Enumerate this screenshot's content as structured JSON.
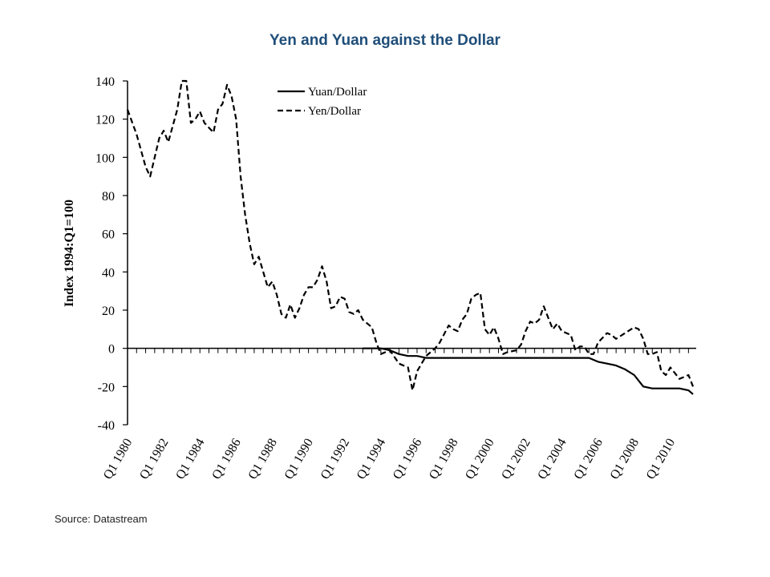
{
  "title": "Yen and Yuan against the Dollar",
  "source": "Source: Datastream",
  "colors": {
    "title": "#1f4e79",
    "lines": "#000000"
  },
  "chart_data": {
    "type": "line",
    "title": "Yen and Yuan against the Dollar",
    "xlabel": "",
    "ylabel": "Index 1994:Q1=100",
    "ylim": [
      -40,
      140
    ],
    "yticks": [
      -40,
      -20,
      0,
      20,
      40,
      60,
      80,
      100,
      120,
      140
    ],
    "x_tick_labels": [
      "Q1 1980",
      "Q1 1982",
      "Q1 1984",
      "Q1 1986",
      "Q1 1988",
      "Q1 1990",
      "Q1 1992",
      "Q1 1994",
      "Q1 1996",
      "Q1 1998",
      "Q1 2000",
      "Q1 2002",
      "Q1 2004",
      "Q1 2006",
      "Q1 2008",
      "Q1 2010"
    ],
    "xlim": [
      1980.0,
      2011.25
    ],
    "grid": false,
    "legend": "top-center",
    "series": [
      {
        "name": "Yuan/Dollar",
        "style": "solid",
        "points": [
          [
            1993.0,
            0
          ],
          [
            1994.0,
            0
          ],
          [
            1994.5,
            -1
          ],
          [
            1995.0,
            -3
          ],
          [
            1995.5,
            -4
          ],
          [
            1996.0,
            -4
          ],
          [
            1996.5,
            -5
          ],
          [
            2005.5,
            -5
          ],
          [
            2006.0,
            -7
          ],
          [
            2006.5,
            -8
          ],
          [
            2007.0,
            -9
          ],
          [
            2007.5,
            -11
          ],
          [
            2008.0,
            -14
          ],
          [
            2008.5,
            -20
          ],
          [
            2009.0,
            -21
          ],
          [
            2010.5,
            -21
          ],
          [
            2011.0,
            -22
          ],
          [
            2011.25,
            -24
          ]
        ]
      },
      {
        "name": "Yen/Dollar",
        "style": "dashed",
        "points": [
          [
            1980.0,
            125
          ],
          [
            1980.5,
            112
          ],
          [
            1981.0,
            95
          ],
          [
            1981.25,
            90
          ],
          [
            1981.75,
            110
          ],
          [
            1982.0,
            114
          ],
          [
            1982.25,
            108
          ],
          [
            1982.75,
            125
          ],
          [
            1983.0,
            140
          ],
          [
            1983.25,
            140
          ],
          [
            1983.5,
            118
          ],
          [
            1983.75,
            120
          ],
          [
            1984.0,
            124
          ],
          [
            1984.25,
            118
          ],
          [
            1984.75,
            113
          ],
          [
            1985.0,
            125
          ],
          [
            1985.25,
            128
          ],
          [
            1985.5,
            138
          ],
          [
            1985.75,
            132
          ],
          [
            1986.0,
            120
          ],
          [
            1986.25,
            90
          ],
          [
            1986.5,
            70
          ],
          [
            1986.75,
            55
          ],
          [
            1987.0,
            44
          ],
          [
            1987.25,
            48
          ],
          [
            1987.5,
            40
          ],
          [
            1987.75,
            32
          ],
          [
            1988.0,
            35
          ],
          [
            1988.25,
            28
          ],
          [
            1988.5,
            18
          ],
          [
            1988.75,
            16
          ],
          [
            1989.0,
            23
          ],
          [
            1989.25,
            16
          ],
          [
            1989.5,
            21
          ],
          [
            1989.75,
            28
          ],
          [
            1990.0,
            32
          ],
          [
            1990.25,
            32
          ],
          [
            1990.5,
            36
          ],
          [
            1990.75,
            43
          ],
          [
            1991.0,
            35
          ],
          [
            1991.25,
            21
          ],
          [
            1991.5,
            22
          ],
          [
            1991.75,
            27
          ],
          [
            1992.0,
            26
          ],
          [
            1992.25,
            19
          ],
          [
            1992.5,
            18
          ],
          [
            1992.75,
            20
          ],
          [
            1993.0,
            15
          ],
          [
            1993.5,
            11
          ],
          [
            1993.75,
            3
          ],
          [
            1994.0,
            -3
          ],
          [
            1994.5,
            -1
          ],
          [
            1995.0,
            -8
          ],
          [
            1995.5,
            -10
          ],
          [
            1995.75,
            -22
          ],
          [
            1996.0,
            -12
          ],
          [
            1996.5,
            -4
          ],
          [
            1997.0,
            0
          ],
          [
            1997.25,
            3
          ],
          [
            1997.75,
            12
          ],
          [
            1998.0,
            10
          ],
          [
            1998.25,
            9
          ],
          [
            1998.5,
            15
          ],
          [
            1998.75,
            18
          ],
          [
            1999.0,
            26
          ],
          [
            1999.25,
            28
          ],
          [
            1999.5,
            29
          ],
          [
            1999.75,
            10
          ],
          [
            2000.0,
            7
          ],
          [
            2000.25,
            11
          ],
          [
            2000.5,
            5
          ],
          [
            2000.75,
            -3
          ],
          [
            2001.0,
            -2
          ],
          [
            2001.5,
            -1
          ],
          [
            2001.75,
            2
          ],
          [
            2002.0,
            9
          ],
          [
            2002.25,
            14
          ],
          [
            2002.5,
            13
          ],
          [
            2002.75,
            15
          ],
          [
            2003.0,
            22
          ],
          [
            2003.25,
            16
          ],
          [
            2003.5,
            10
          ],
          [
            2003.75,
            13
          ],
          [
            2004.0,
            9
          ],
          [
            2004.5,
            7
          ],
          [
            2004.75,
            -1
          ],
          [
            2005.0,
            1
          ],
          [
            2005.25,
            1
          ],
          [
            2005.5,
            -3
          ],
          [
            2005.75,
            -3
          ],
          [
            2006.0,
            3
          ],
          [
            2006.5,
            8
          ],
          [
            2006.75,
            7
          ],
          [
            2007.0,
            5
          ],
          [
            2007.5,
            8
          ],
          [
            2008.0,
            11
          ],
          [
            2008.25,
            10
          ],
          [
            2008.5,
            5
          ],
          [
            2008.75,
            -3
          ],
          [
            2009.0,
            -3
          ],
          [
            2009.25,
            -2
          ],
          [
            2009.5,
            -12
          ],
          [
            2009.75,
            -14
          ],
          [
            2010.0,
            -10
          ],
          [
            2010.5,
            -16
          ],
          [
            2010.75,
            -15
          ],
          [
            2011.0,
            -14
          ],
          [
            2011.25,
            -20
          ]
        ]
      }
    ]
  }
}
